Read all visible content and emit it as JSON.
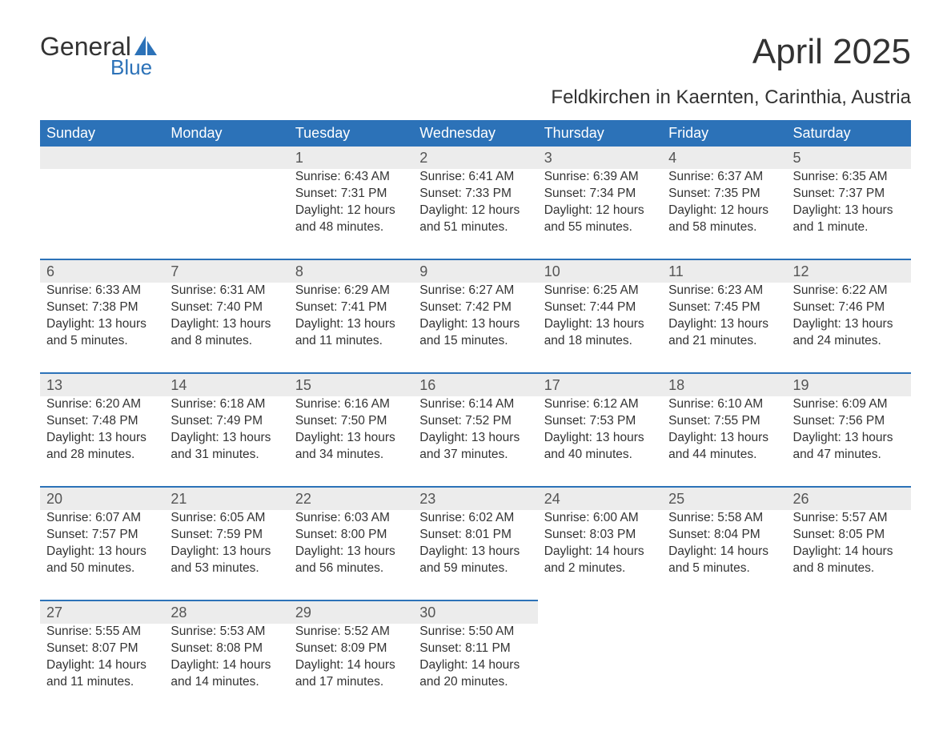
{
  "logo": {
    "text_general": "General",
    "text_blue": "Blue"
  },
  "title": "April 2025",
  "subtitle": "Feldkirchen in Kaernten, Carinthia, Austria",
  "colors": {
    "header_bg": "#2c72b8",
    "header_text": "#ffffff",
    "daynum_bg": "#ececec",
    "border_top": "#2c72b8",
    "body_text": "#333333",
    "logo_blue": "#2c72b8",
    "background": "#ffffff"
  },
  "day_headers": [
    "Sunday",
    "Monday",
    "Tuesday",
    "Wednesday",
    "Thursday",
    "Friday",
    "Saturday"
  ],
  "weeks": [
    {
      "days": [
        null,
        null,
        {
          "n": "1",
          "sunrise": "Sunrise: 6:43 AM",
          "sunset": "Sunset: 7:31 PM",
          "d1": "Daylight: 12 hours",
          "d2": "and 48 minutes."
        },
        {
          "n": "2",
          "sunrise": "Sunrise: 6:41 AM",
          "sunset": "Sunset: 7:33 PM",
          "d1": "Daylight: 12 hours",
          "d2": "and 51 minutes."
        },
        {
          "n": "3",
          "sunrise": "Sunrise: 6:39 AM",
          "sunset": "Sunset: 7:34 PM",
          "d1": "Daylight: 12 hours",
          "d2": "and 55 minutes."
        },
        {
          "n": "4",
          "sunrise": "Sunrise: 6:37 AM",
          "sunset": "Sunset: 7:35 PM",
          "d1": "Daylight: 12 hours",
          "d2": "and 58 minutes."
        },
        {
          "n": "5",
          "sunrise": "Sunrise: 6:35 AM",
          "sunset": "Sunset: 7:37 PM",
          "d1": "Daylight: 13 hours",
          "d2": "and 1 minute."
        }
      ]
    },
    {
      "days": [
        {
          "n": "6",
          "sunrise": "Sunrise: 6:33 AM",
          "sunset": "Sunset: 7:38 PM",
          "d1": "Daylight: 13 hours",
          "d2": "and 5 minutes."
        },
        {
          "n": "7",
          "sunrise": "Sunrise: 6:31 AM",
          "sunset": "Sunset: 7:40 PM",
          "d1": "Daylight: 13 hours",
          "d2": "and 8 minutes."
        },
        {
          "n": "8",
          "sunrise": "Sunrise: 6:29 AM",
          "sunset": "Sunset: 7:41 PM",
          "d1": "Daylight: 13 hours",
          "d2": "and 11 minutes."
        },
        {
          "n": "9",
          "sunrise": "Sunrise: 6:27 AM",
          "sunset": "Sunset: 7:42 PM",
          "d1": "Daylight: 13 hours",
          "d2": "and 15 minutes."
        },
        {
          "n": "10",
          "sunrise": "Sunrise: 6:25 AM",
          "sunset": "Sunset: 7:44 PM",
          "d1": "Daylight: 13 hours",
          "d2": "and 18 minutes."
        },
        {
          "n": "11",
          "sunrise": "Sunrise: 6:23 AM",
          "sunset": "Sunset: 7:45 PM",
          "d1": "Daylight: 13 hours",
          "d2": "and 21 minutes."
        },
        {
          "n": "12",
          "sunrise": "Sunrise: 6:22 AM",
          "sunset": "Sunset: 7:46 PM",
          "d1": "Daylight: 13 hours",
          "d2": "and 24 minutes."
        }
      ]
    },
    {
      "days": [
        {
          "n": "13",
          "sunrise": "Sunrise: 6:20 AM",
          "sunset": "Sunset: 7:48 PM",
          "d1": "Daylight: 13 hours",
          "d2": "and 28 minutes."
        },
        {
          "n": "14",
          "sunrise": "Sunrise: 6:18 AM",
          "sunset": "Sunset: 7:49 PM",
          "d1": "Daylight: 13 hours",
          "d2": "and 31 minutes."
        },
        {
          "n": "15",
          "sunrise": "Sunrise: 6:16 AM",
          "sunset": "Sunset: 7:50 PM",
          "d1": "Daylight: 13 hours",
          "d2": "and 34 minutes."
        },
        {
          "n": "16",
          "sunrise": "Sunrise: 6:14 AM",
          "sunset": "Sunset: 7:52 PM",
          "d1": "Daylight: 13 hours",
          "d2": "and 37 minutes."
        },
        {
          "n": "17",
          "sunrise": "Sunrise: 6:12 AM",
          "sunset": "Sunset: 7:53 PM",
          "d1": "Daylight: 13 hours",
          "d2": "and 40 minutes."
        },
        {
          "n": "18",
          "sunrise": "Sunrise: 6:10 AM",
          "sunset": "Sunset: 7:55 PM",
          "d1": "Daylight: 13 hours",
          "d2": "and 44 minutes."
        },
        {
          "n": "19",
          "sunrise": "Sunrise: 6:09 AM",
          "sunset": "Sunset: 7:56 PM",
          "d1": "Daylight: 13 hours",
          "d2": "and 47 minutes."
        }
      ]
    },
    {
      "days": [
        {
          "n": "20",
          "sunrise": "Sunrise: 6:07 AM",
          "sunset": "Sunset: 7:57 PM",
          "d1": "Daylight: 13 hours",
          "d2": "and 50 minutes."
        },
        {
          "n": "21",
          "sunrise": "Sunrise: 6:05 AM",
          "sunset": "Sunset: 7:59 PM",
          "d1": "Daylight: 13 hours",
          "d2": "and 53 minutes."
        },
        {
          "n": "22",
          "sunrise": "Sunrise: 6:03 AM",
          "sunset": "Sunset: 8:00 PM",
          "d1": "Daylight: 13 hours",
          "d2": "and 56 minutes."
        },
        {
          "n": "23",
          "sunrise": "Sunrise: 6:02 AM",
          "sunset": "Sunset: 8:01 PM",
          "d1": "Daylight: 13 hours",
          "d2": "and 59 minutes."
        },
        {
          "n": "24",
          "sunrise": "Sunrise: 6:00 AM",
          "sunset": "Sunset: 8:03 PM",
          "d1": "Daylight: 14 hours",
          "d2": "and 2 minutes."
        },
        {
          "n": "25",
          "sunrise": "Sunrise: 5:58 AM",
          "sunset": "Sunset: 8:04 PM",
          "d1": "Daylight: 14 hours",
          "d2": "and 5 minutes."
        },
        {
          "n": "26",
          "sunrise": "Sunrise: 5:57 AM",
          "sunset": "Sunset: 8:05 PM",
          "d1": "Daylight: 14 hours",
          "d2": "and 8 minutes."
        }
      ]
    },
    {
      "days": [
        {
          "n": "27",
          "sunrise": "Sunrise: 5:55 AM",
          "sunset": "Sunset: 8:07 PM",
          "d1": "Daylight: 14 hours",
          "d2": "and 11 minutes."
        },
        {
          "n": "28",
          "sunrise": "Sunrise: 5:53 AM",
          "sunset": "Sunset: 8:08 PM",
          "d1": "Daylight: 14 hours",
          "d2": "and 14 minutes."
        },
        {
          "n": "29",
          "sunrise": "Sunrise: 5:52 AM",
          "sunset": "Sunset: 8:09 PM",
          "d1": "Daylight: 14 hours",
          "d2": "and 17 minutes."
        },
        {
          "n": "30",
          "sunrise": "Sunrise: 5:50 AM",
          "sunset": "Sunset: 8:11 PM",
          "d1": "Daylight: 14 hours",
          "d2": "and 20 minutes."
        },
        null,
        null,
        null
      ]
    }
  ]
}
